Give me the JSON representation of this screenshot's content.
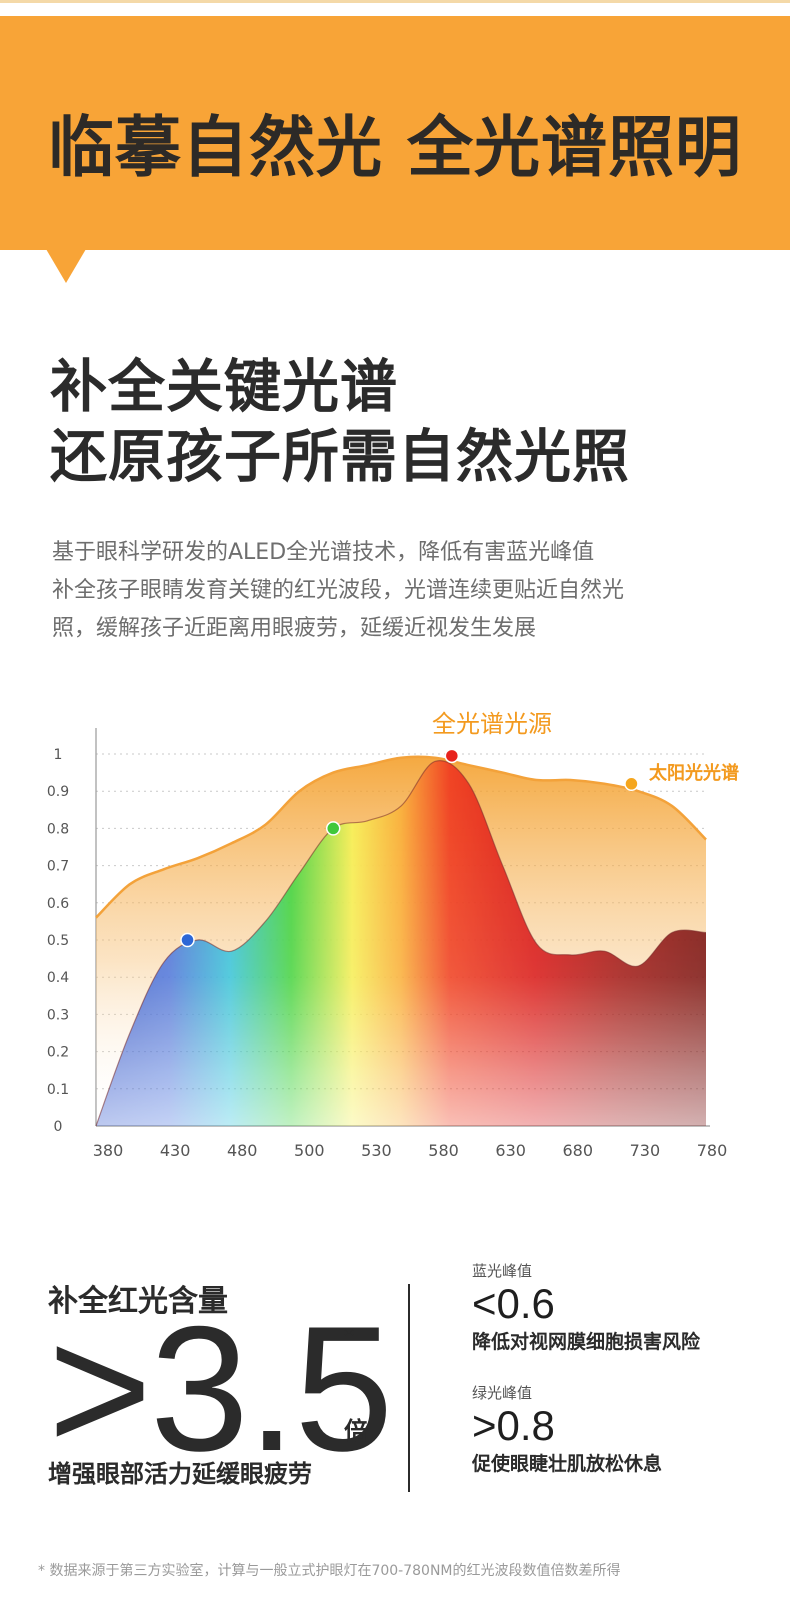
{
  "banner": {
    "title": "临摹自然光 全光谱照明",
    "color": "#f8a437"
  },
  "headline": {
    "line1": "补全关键光谱",
    "line2": "还原孩子所需自然光照"
  },
  "description": {
    "line1": "基于眼科学研发的ALED全光谱技术，降低有害蓝光峰值",
    "line2": "补全孩子眼睛发育关键的红光波段，光谱连续更贴近自然光",
    "line3": "照，缓解孩子近距离用眼疲劳，延缓近视发生发展"
  },
  "chart_data": {
    "type": "area",
    "x_ticks": [
      380,
      430,
      480,
      500,
      530,
      580,
      630,
      680,
      730,
      780
    ],
    "y_ticks": [
      "0",
      "0.1",
      "0.2",
      "0.3",
      "0.4",
      "0.5",
      "0.6",
      "0.7",
      "0.8",
      "0.9",
      "1"
    ],
    "ylim": [
      0,
      1
    ],
    "grid": true,
    "series": [
      {
        "name": "太阳光光谱",
        "color": "#f39a1f",
        "values": [
          0.56,
          0.65,
          0.69,
          0.72,
          0.76,
          0.81,
          0.9,
          0.95,
          0.97,
          0.99,
          0.99,
          0.97,
          0.95,
          0.93,
          0.93,
          0.92,
          0.9,
          0.86,
          0.77
        ]
      },
      {
        "name": "全光谱光源",
        "color": "#e8231d",
        "values": [
          0.0,
          0.25,
          0.44,
          0.5,
          0.47,
          0.55,
          0.68,
          0.8,
          0.82,
          0.86,
          0.98,
          0.92,
          0.7,
          0.49,
          0.46,
          0.47,
          0.43,
          0.52,
          0.52
        ]
      }
    ],
    "x_positions": [
      0,
      1,
      2,
      3,
      4,
      5,
      6,
      7,
      8,
      9,
      10,
      11,
      12,
      13,
      14,
      15,
      16,
      17,
      18
    ],
    "markers": [
      {
        "series": 1,
        "index": 2.7,
        "value": 0.5,
        "color": "#2d67d6"
      },
      {
        "series": 1,
        "index": 7.0,
        "value": 0.8,
        "color": "#41c83b"
      },
      {
        "series": 1,
        "index": 10.5,
        "value": 0.995,
        "color": "#e8231d"
      },
      {
        "series": 0,
        "index": 15.8,
        "value": 0.92,
        "color": "#f5a61d"
      }
    ]
  },
  "stats": {
    "label": "补全红光含量",
    "value": ">3.5",
    "star": "*",
    "unit": "倍",
    "caption": "增强眼部活力延缓眼疲劳"
  },
  "metrics": [
    {
      "title": "蓝光峰值",
      "value": "<0.6",
      "desc": "降低对视网膜细胞损害风险"
    },
    {
      "title": "绿光峰值",
      "value": ">0.8",
      "desc": "促使眼睫壮肌放松休息"
    }
  ],
  "footnote": "* 数据来源于第三方实验室，计算与一般立式护眼灯在700-780NM的红光波段数值倍数差所得"
}
